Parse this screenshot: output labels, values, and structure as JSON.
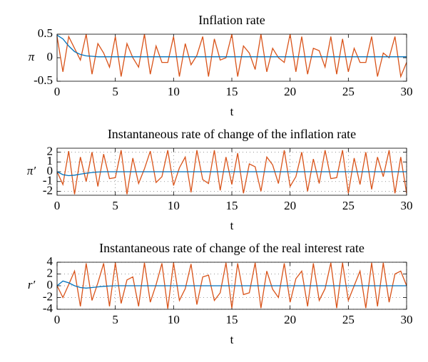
{
  "chart_data": [
    {
      "type": "line",
      "title": "Inflation rate",
      "ylabel": "π",
      "xlabel": "t",
      "grid": false,
      "xlim": [
        0,
        30
      ],
      "xticks": [
        0,
        5,
        10,
        15,
        20,
        25,
        30
      ],
      "ylim": [
        -0.5,
        0.5
      ],
      "yticks": [
        -0.5,
        0,
        0.5
      ],
      "x": [
        0,
        0.5,
        1,
        1.5,
        2,
        2.5,
        3,
        3.5,
        4,
        4.5,
        5,
        5.5,
        6,
        6.5,
        7,
        7.5,
        8,
        8.5,
        9,
        9.5,
        10,
        10.5,
        11,
        11.5,
        12,
        12.5,
        13,
        13.5,
        14,
        14.5,
        15,
        15.5,
        16,
        16.5,
        17,
        17.5,
        18,
        18.5,
        19,
        19.5,
        20,
        20.5,
        21,
        21.5,
        22,
        22.5,
        23,
        23.5,
        24,
        24.5,
        25,
        25.5,
        26,
        26.5,
        27,
        27.5,
        28,
        28.5,
        29,
        29.5,
        30
      ],
      "series": [
        {
          "color": "#d95319",
          "values": [
            0.45,
            -0.3,
            0.45,
            0.2,
            -0.05,
            0.5,
            -0.35,
            0.3,
            0.1,
            -0.2,
            0.45,
            -0.4,
            0.3,
            0,
            -0.2,
            0.5,
            -0.35,
            0.25,
            -0.1,
            -0.1,
            0.45,
            -0.4,
            0.3,
            -0.15,
            0.05,
            0.45,
            -0.4,
            0.4,
            -0.05,
            0,
            0.5,
            -0.4,
            0.25,
            0.1,
            -0.25,
            0.5,
            -0.3,
            0.2,
            0,
            -0.1,
            0.5,
            -0.3,
            0.45,
            -0.35,
            0.2,
            0.15,
            -0.2,
            0.45,
            -0.35,
            0.4,
            -0.3,
            0.2,
            -0.1,
            -0.1,
            0.45,
            -0.4,
            0.1,
            0,
            0.45,
            -0.4,
            -0.1
          ]
        },
        {
          "color": "#0072bd",
          "values": [
            0.48,
            0.4,
            0.25,
            0.13,
            0.07,
            0.04,
            0.03,
            0.02,
            0.02,
            0.02,
            0.02,
            0.02,
            0.02,
            0.02,
            0.02,
            0.02,
            0.02,
            0.02,
            0.02,
            0.02,
            0.02,
            0.02,
            0.02,
            0.02,
            0.02,
            0.02,
            0.02,
            0.02,
            0.02,
            0.02,
            0.02,
            0.02,
            0.02,
            0.02,
            0.02,
            0.02,
            0.02,
            0.02,
            0.02,
            0.02,
            0.02,
            0.02,
            0.02,
            0.02,
            0.02,
            0.02,
            0.02,
            0.02,
            0.02,
            0.02,
            0.02,
            0.02,
            0.02,
            0.02,
            0.02,
            0.02,
            0.02,
            0.02,
            0.02,
            0.02,
            0.02
          ]
        }
      ]
    },
    {
      "type": "line",
      "title": "Instantaneous rate of change of the inflation rate",
      "ylabel": "π′",
      "xlabel": "t",
      "grid": true,
      "xlim": [
        0,
        30
      ],
      "xticks": [
        0,
        5,
        10,
        15,
        20,
        25,
        30
      ],
      "ylim": [
        -2.4,
        2.4
      ],
      "yticks": [
        -2,
        -1,
        0,
        1,
        2
      ],
      "x": [
        0,
        0.5,
        1,
        1.5,
        2,
        2.5,
        3,
        3.5,
        4,
        4.5,
        5,
        5.5,
        6,
        6.5,
        7,
        7.5,
        8,
        8.5,
        9,
        9.5,
        10,
        10.5,
        11,
        11.5,
        12,
        12.5,
        13,
        13.5,
        14,
        14.5,
        15,
        15.5,
        16,
        16.5,
        17,
        17.5,
        18,
        18.5,
        19,
        19.5,
        20,
        20.5,
        21,
        21.5,
        22,
        22.5,
        23,
        23.5,
        24,
        24.5,
        25,
        25.5,
        26,
        26.5,
        27,
        27.5,
        28,
        28.5,
        29,
        29.5,
        30
      ],
      "series": [
        {
          "color": "#d95319",
          "values": [
            0,
            -1.3,
            2.1,
            -2.3,
            1.5,
            -1,
            2,
            -1.5,
            1.8,
            -0.7,
            -0.6,
            2.2,
            -2.3,
            1.4,
            -1.2,
            0.3,
            2.1,
            -1.1,
            -0.5,
            2.2,
            -1.4,
            0.4,
            1.5,
            -2.1,
            2.2,
            -0.8,
            -1.2,
            2.2,
            -1.9,
            1.5,
            -1.3,
            1.9,
            -2.2,
            0.8,
            0.5,
            -2,
            1.5,
            0.7,
            -1.2,
            2.2,
            -1.5,
            -0.5,
            2,
            -2,
            1.3,
            -1.2,
            2.2,
            -0.7,
            -0.6,
            2.2,
            -2.2,
            1.4,
            -1.3,
            2,
            -1.8,
            1.5,
            -0.5,
            2.2,
            -2.2,
            1.5,
            -2.2
          ]
        },
        {
          "color": "#0072bd",
          "values": [
            0,
            -0.3,
            -0.4,
            -0.35,
            -0.25,
            -0.15,
            -0.08,
            -0.03,
            0,
            0,
            0,
            0,
            0,
            0,
            0,
            0,
            0,
            0,
            0,
            0,
            0,
            0,
            0,
            0,
            0,
            0,
            0,
            0,
            0,
            0,
            0,
            0,
            0,
            0,
            0,
            0,
            0,
            0,
            0,
            0,
            0,
            0,
            0,
            0,
            0,
            0,
            0,
            0,
            0,
            0,
            0,
            0,
            0,
            0,
            0,
            0,
            0,
            0,
            0,
            0,
            0
          ]
        }
      ]
    },
    {
      "type": "line",
      "title": "Instantaneous rate of change of the real interest rate",
      "ylabel": "r′",
      "xlabel": "t",
      "grid": true,
      "xlim": [
        0,
        30
      ],
      "xticks": [
        0,
        5,
        10,
        15,
        20,
        25,
        30
      ],
      "ylim": [
        -4,
        4
      ],
      "yticks": [
        -4,
        -2,
        0,
        2,
        4
      ],
      "x": [
        0,
        0.5,
        1,
        1.5,
        2,
        2.5,
        3,
        3.5,
        4,
        4.5,
        5,
        5.5,
        6,
        6.5,
        7,
        7.5,
        8,
        8.5,
        9,
        9.5,
        10,
        10.5,
        11,
        11.5,
        12,
        12.5,
        13,
        13.5,
        14,
        14.5,
        15,
        15.5,
        16,
        16.5,
        17,
        17.5,
        18,
        18.5,
        19,
        19.5,
        20,
        20.5,
        21,
        21.5,
        22,
        22.5,
        23,
        23.5,
        24,
        24.5,
        25,
        25.5,
        26,
        26.5,
        27,
        27.5,
        28,
        28.5,
        29,
        29.5,
        30
      ],
      "series": [
        {
          "color": "#d95319",
          "values": [
            0,
            -2,
            0.2,
            2.5,
            -3.5,
            3.8,
            -2.5,
            0.5,
            3.8,
            -3.5,
            3.9,
            -3,
            1,
            1.5,
            -3.5,
            3.9,
            -2.8,
            0.2,
            3.8,
            -3.9,
            3.9,
            -2.5,
            -0.5,
            3.7,
            -3.2,
            1.5,
            1.8,
            -2.5,
            -1.2,
            3.9,
            -3.8,
            3.8,
            -1.5,
            -1.2,
            3.9,
            -3.8,
            2.5,
            -0.6,
            -2,
            3.8,
            -2.8,
            1.2,
            2.5,
            -3.5,
            3.8,
            -2.5,
            -0.5,
            3.9,
            -3.8,
            3.9,
            -2.5,
            0,
            2.5,
            -3.8,
            3.9,
            -3.5,
            3.9,
            -2.8,
            2,
            2.5,
            0
          ]
        },
        {
          "color": "#0072bd",
          "values": [
            0,
            0.8,
            0.5,
            0,
            -0.3,
            -0.4,
            -0.3,
            -0.2,
            -0.1,
            -0.05,
            0,
            0,
            0,
            0,
            0,
            0,
            0,
            0,
            0,
            0,
            0,
            0,
            0,
            0,
            0,
            0,
            0,
            0,
            0,
            0,
            0,
            0,
            0,
            0,
            0,
            0,
            0,
            0,
            0,
            0,
            0,
            0,
            0,
            0,
            0,
            0,
            0,
            0,
            0,
            0,
            0,
            0,
            0,
            0,
            0,
            0,
            0,
            0,
            0,
            0,
            0
          ]
        }
      ]
    }
  ]
}
